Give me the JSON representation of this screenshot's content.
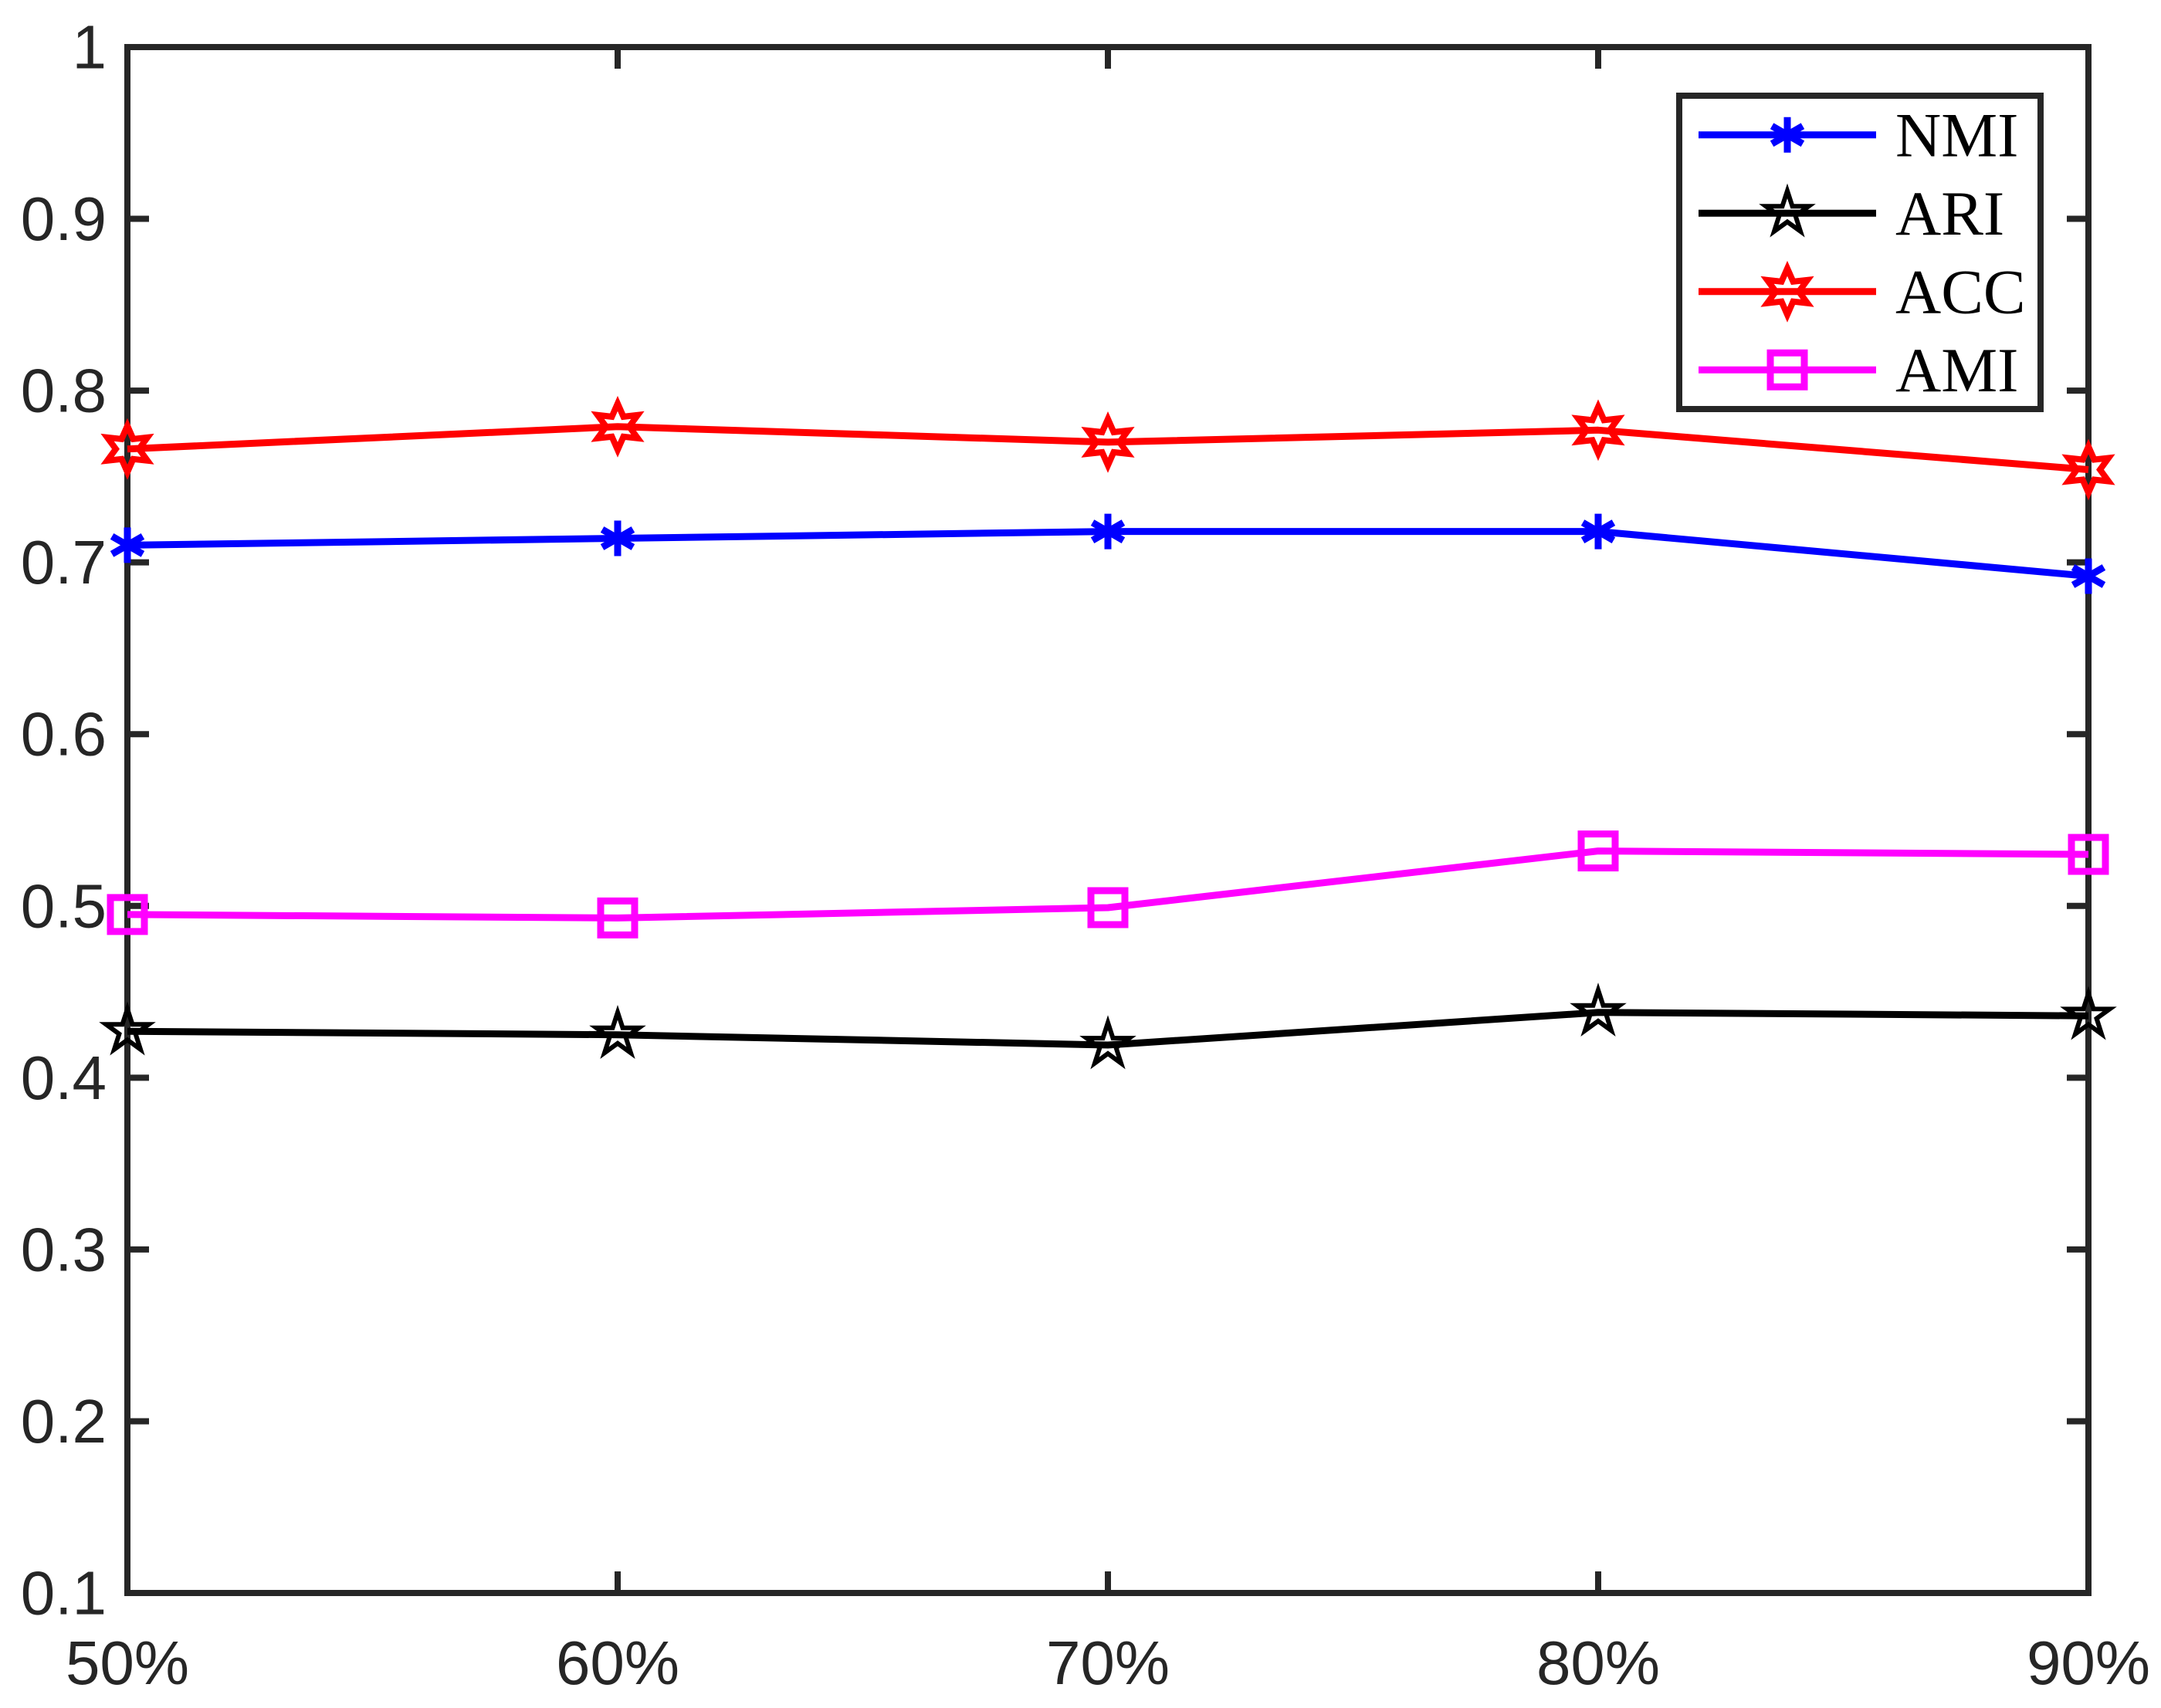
{
  "chart_data": {
    "type": "line",
    "title": "",
    "xlabel": "",
    "ylabel": "",
    "categories": [
      "50%",
      "60%",
      "70%",
      "80%",
      "90%"
    ],
    "series": [
      {
        "name": "NMI",
        "color": "#0000FF",
        "marker": "asterisk",
        "values": [
          0.71,
          0.714,
          0.718,
          0.718,
          0.692
        ]
      },
      {
        "name": "ARI",
        "color": "#000000",
        "marker": "pentagram",
        "values": [
          0.427,
          0.425,
          0.419,
          0.438,
          0.436
        ]
      },
      {
        "name": "ACC",
        "color": "#FF0000",
        "marker": "hexagram",
        "values": [
          0.766,
          0.779,
          0.77,
          0.777,
          0.754
        ]
      },
      {
        "name": "AMI",
        "color": "#FF00FF",
        "marker": "square",
        "values": [
          0.495,
          0.493,
          0.499,
          0.532,
          0.53
        ]
      }
    ],
    "ylim": [
      0.1,
      1.0
    ],
    "yticks": [
      0.1,
      0.2,
      0.3,
      0.4,
      0.5,
      0.6,
      0.7,
      0.8,
      0.9,
      1.0
    ],
    "ytick_labels": [
      "0.1",
      "0.2",
      "0.3",
      "0.4",
      "0.5",
      "0.6",
      "0.7",
      "0.8",
      "0.9",
      "1"
    ],
    "grid": false,
    "box": true,
    "legend": {
      "position": "top-right",
      "entries": [
        "NMI",
        "ARI",
        "ACC",
        "AMI"
      ]
    },
    "axis_color": "#262626",
    "tick_label_color": "#262626",
    "legend_text_color": "#000000",
    "background": "#FFFFFF"
  }
}
